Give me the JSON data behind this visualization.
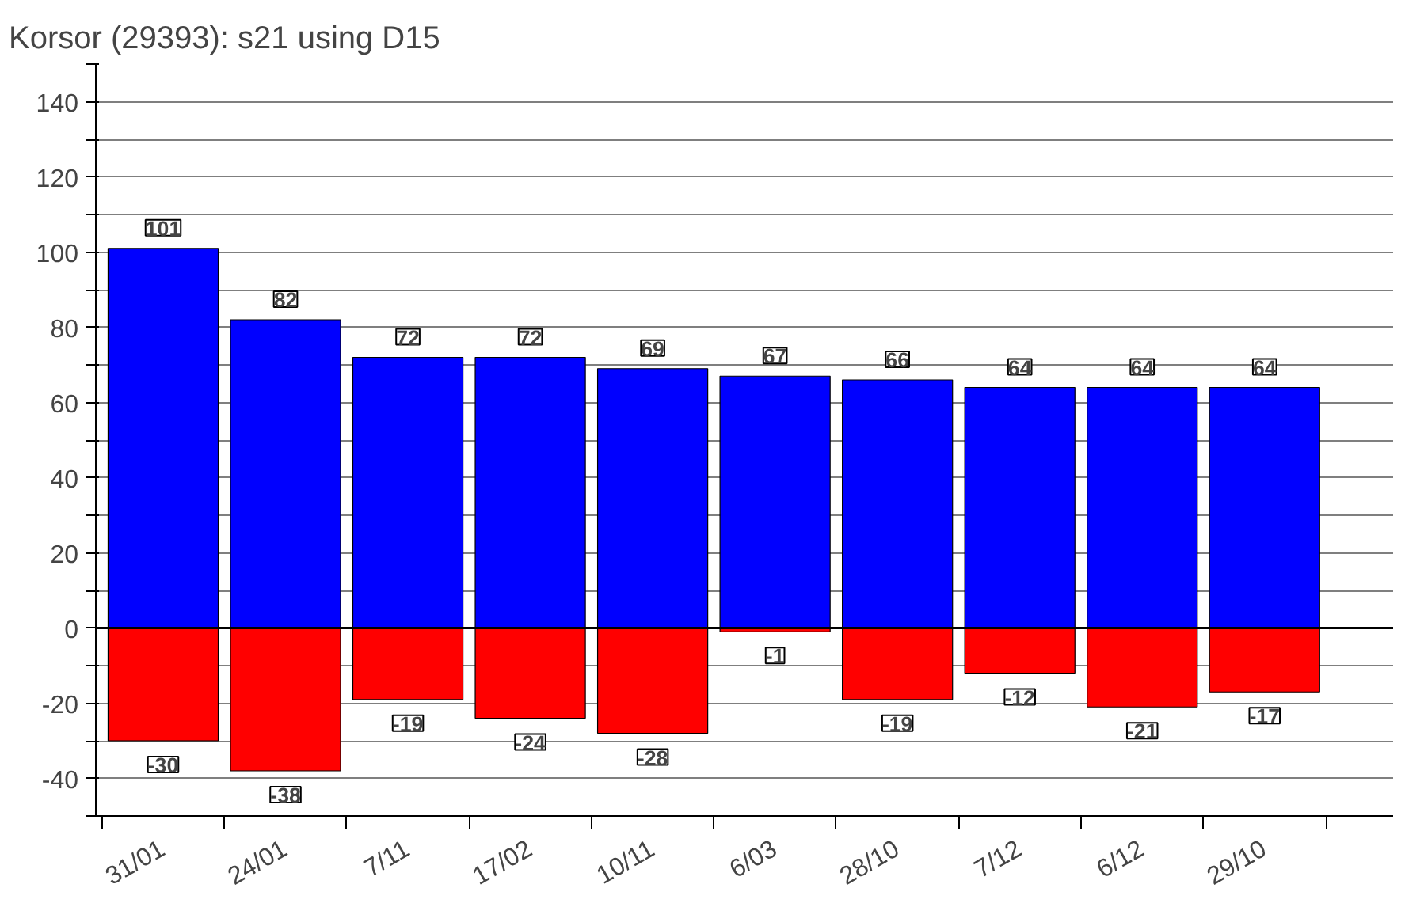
{
  "chart_data": {
    "type": "bar",
    "title": "Korsor (29393): s21 using D15",
    "categories": [
      "31/01",
      "24/01",
      "7/11",
      "17/02",
      "10/11",
      "6/03",
      "28/10",
      "7/12",
      "6/12",
      "29/10"
    ],
    "series": [
      {
        "color": "#0000ff",
        "values": [
          101,
          82,
          72,
          72,
          69,
          67,
          66,
          64,
          64,
          64
        ]
      },
      {
        "color": "#ff0000",
        "values": [
          -30,
          -38,
          -19,
          -24,
          -28,
          -1,
          -19,
          -12,
          -21,
          -17
        ]
      }
    ],
    "ylim": [
      -50,
      150
    ],
    "yticks": [
      {
        "value": -50,
        "label": null
      },
      -40,
      {
        "value": -30,
        "label": null
      },
      -20,
      {
        "value": -10,
        "label": null
      },
      0,
      {
        "value": 10,
        "label": null
      },
      20,
      {
        "value": 30,
        "label": null
      },
      40,
      {
        "value": 50,
        "label": null
      },
      60,
      {
        "value": 70,
        "label": null
      },
      80,
      {
        "value": 90,
        "label": null
      },
      100,
      {
        "value": 110,
        "label": null
      },
      120,
      {
        "value": 130,
        "label": null
      },
      140,
      {
        "value": 150,
        "label": null
      }
    ],
    "grid": "y",
    "data_labels": true,
    "stacked": true
  }
}
